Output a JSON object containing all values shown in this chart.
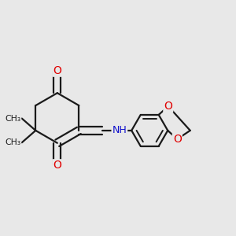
{
  "background_color": "#e8e8e8",
  "bond_color": "#1a1a1a",
  "bond_width": 1.6,
  "atom_colors": {
    "O": "#e00000",
    "N": "#1010cc",
    "C": "#1a1a1a"
  },
  "figsize": [
    3.0,
    3.0
  ],
  "dpi": 100,
  "xlim": [
    -0.5,
    0.85
  ],
  "ylim": [
    -0.55,
    0.55
  ]
}
